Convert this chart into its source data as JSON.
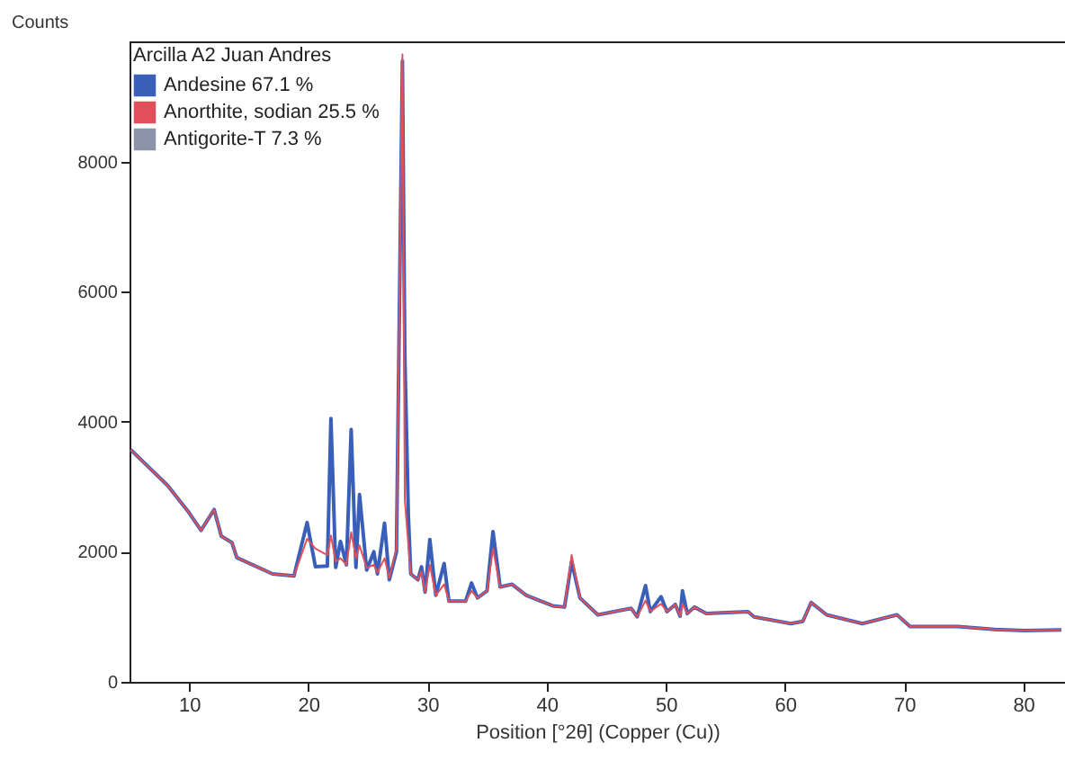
{
  "chart_data": {
    "type": "line",
    "xlabel": "Position [°2θ] (Copper (Cu))",
    "ylabel": "Counts",
    "legend_title": "Arcilla A2 Juan Andres",
    "legend": "top left",
    "grid": false,
    "xlim": [
      5,
      83.5
    ],
    "xticks": [
      10,
      20,
      30,
      40,
      50,
      60,
      70,
      80
    ],
    "ylim": [
      0,
      9850
    ],
    "yticks": [
      0,
      2000,
      4000,
      6000,
      8000
    ],
    "x": [
      5.1,
      8.2,
      10,
      11,
      12.1,
      12.7,
      13.6,
      14,
      17,
      18.8,
      19.9,
      20.6,
      21.6,
      21.9,
      22.3,
      22.7,
      23.2,
      23.6,
      24.0,
      24.3,
      24.9,
      25.5,
      25.8,
      26.4,
      26.8,
      27.4,
      27.9,
      28.1,
      28.4,
      28.6,
      29.2,
      29.5,
      29.8,
      30.2,
      30.7,
      31.4,
      31.8,
      33.2,
      33.7,
      34.2,
      35,
      35.5,
      36.1,
      37.1,
      38.3,
      40.5,
      41.5,
      42.1,
      42.8,
      44.3,
      47.1,
      47.6,
      48.3,
      48.7,
      49.6,
      50.1,
      50.8,
      51.2,
      51.4,
      51.8,
      52.4,
      53.4,
      56.9,
      57.4,
      60.5,
      61.5,
      62.2,
      63.5,
      66.5,
      69.4,
      70.5,
      74.5,
      77.6,
      80.1,
      83.2
    ],
    "series": [
      {
        "name": "Andesine 67.1 %",
        "color": "#3a5fb8",
        "values": [
          3570,
          3020,
          2600,
          2330,
          2650,
          2240,
          2140,
          1910,
          1660,
          1630,
          2450,
          1770,
          1780,
          4050,
          1760,
          2160,
          1800,
          3880,
          1760,
          2880,
          1720,
          2000,
          1660,
          2440,
          1570,
          2000,
          9550,
          5050,
          2550,
          1660,
          1570,
          1770,
          1380,
          2190,
          1330,
          1820,
          1240,
          1240,
          1520,
          1290,
          1400,
          2310,
          1460,
          1500,
          1330,
          1170,
          1150,
          1850,
          1290,
          1030,
          1130,
          1000,
          1480,
          1080,
          1310,
          1080,
          1190,
          1010,
          1400,
          1050,
          1150,
          1050,
          1080,
          1000,
          895,
          930,
          1220,
          1030,
          895,
          1030,
          850,
          850,
          805,
          790,
          800
        ]
      },
      {
        "name": "Anorthite, sodian 25.5 %",
        "color": "#e0505a",
        "values": [
          3570,
          3020,
          2600,
          2330,
          2650,
          2240,
          2140,
          1910,
          1660,
          1630,
          2200,
          2050,
          1950,
          2250,
          1850,
          1900,
          1800,
          2300,
          1900,
          2100,
          1750,
          1800,
          1680,
          1900,
          1600,
          2050,
          9650,
          2800,
          2100,
          1660,
          1570,
          1700,
          1380,
          1800,
          1330,
          1500,
          1240,
          1240,
          1400,
          1290,
          1400,
          2050,
          1460,
          1500,
          1330,
          1170,
          1150,
          1950,
          1290,
          1030,
          1130,
          1000,
          1250,
          1080,
          1200,
          1080,
          1190,
          1010,
          1200,
          1050,
          1150,
          1050,
          1080,
          1000,
          895,
          930,
          1220,
          1030,
          895,
          1030,
          850,
          850,
          805,
          790,
          800
        ]
      },
      {
        "name": "Antigorite-T 7.3 %",
        "color": "#8a93a8",
        "values": [
          null,
          null,
          null,
          null,
          null,
          null,
          null,
          null,
          null,
          null,
          null,
          null,
          null,
          null,
          null,
          null,
          null,
          null,
          null,
          null,
          null,
          null,
          null,
          null,
          null,
          null,
          null,
          null,
          null,
          null,
          null,
          null,
          null,
          null,
          null,
          null,
          null,
          null,
          null,
          null,
          null,
          null,
          null,
          null,
          null,
          null,
          null,
          null,
          null,
          null,
          null,
          null,
          null,
          null,
          null,
          null,
          null,
          null,
          null,
          null,
          null,
          null,
          null,
          null,
          null,
          null,
          null,
          null,
          null,
          null,
          null,
          null,
          null,
          null,
          null
        ]
      }
    ]
  }
}
